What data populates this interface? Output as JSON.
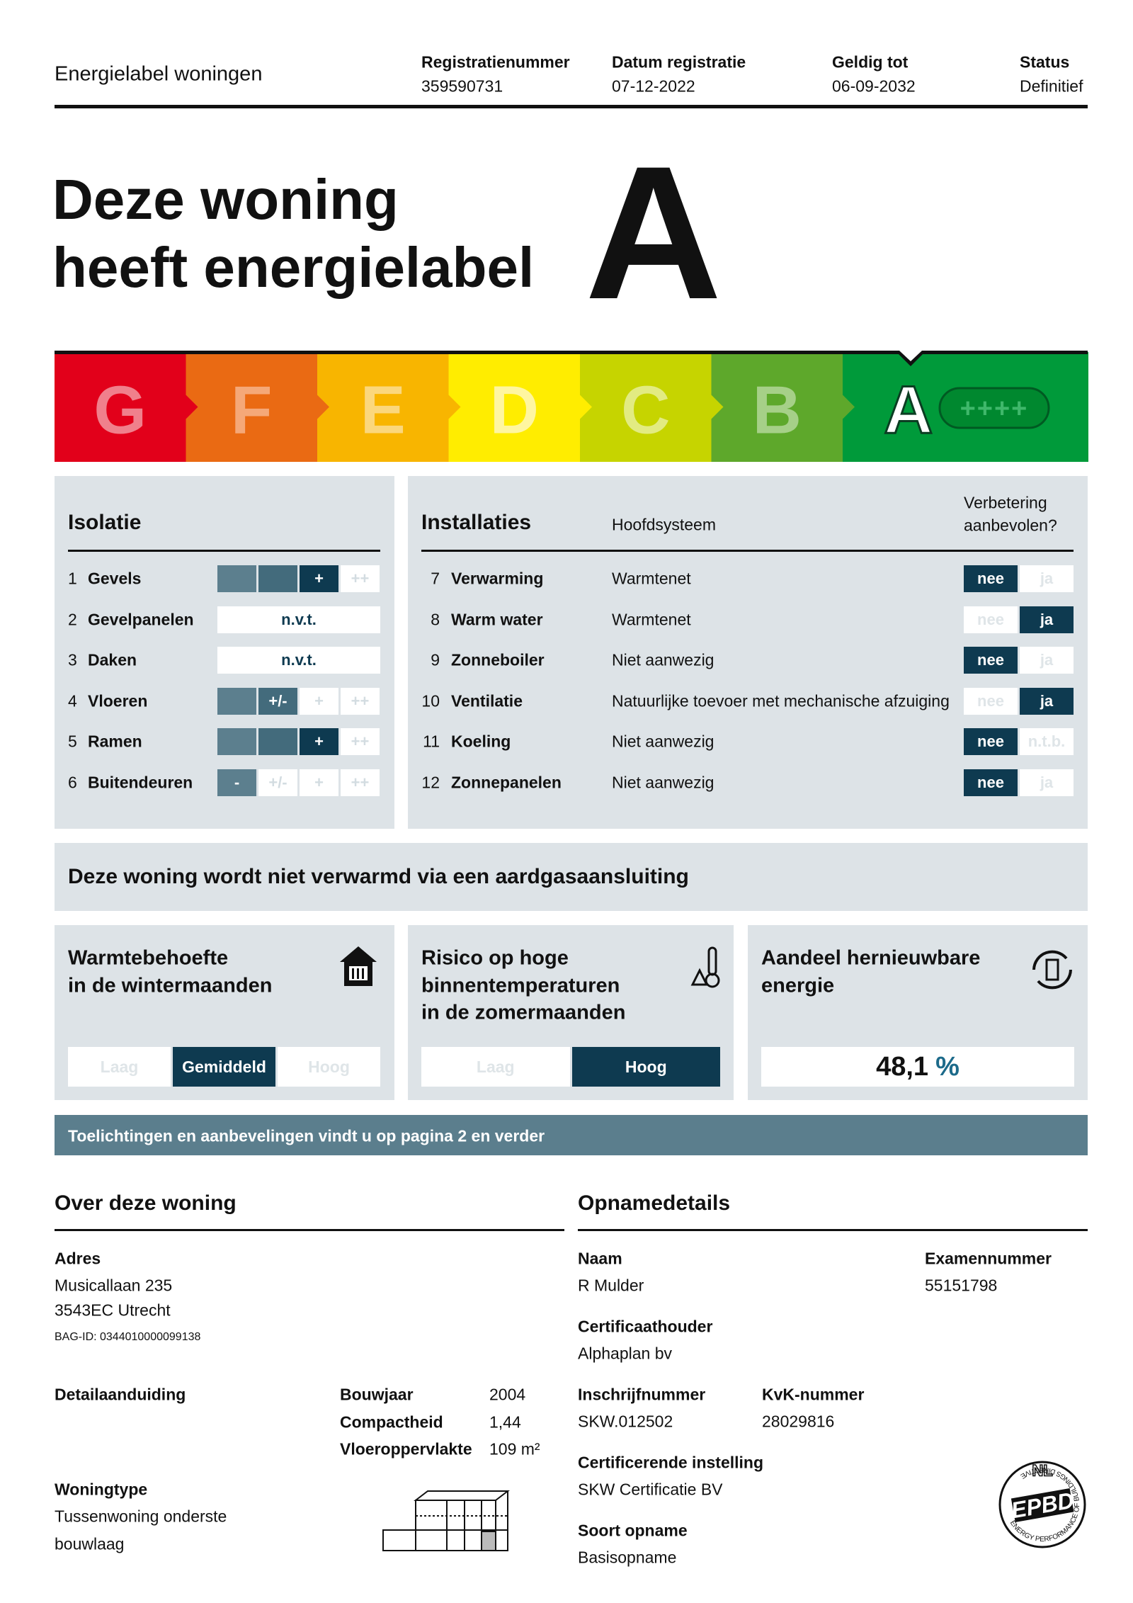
{
  "header": {
    "title": "Energielabel woningen",
    "fields": [
      {
        "label": "Registratienummer",
        "value": "359590731"
      },
      {
        "label": "Datum registratie",
        "value": "07-12-2022"
      },
      {
        "label": "Geldig tot",
        "value": "06-09-2032"
      },
      {
        "label": "Status",
        "value": "Definitief"
      }
    ]
  },
  "headline": {
    "lines": [
      "Deze woning",
      "heeft energielabel"
    ],
    "label": "A"
  },
  "scale": {
    "classes": [
      "G",
      "F",
      "E",
      "D",
      "C",
      "B",
      "A"
    ],
    "extra": "++++"
  },
  "isolatie": {
    "title": "Isolatie",
    "scale": [
      "-",
      "+/-",
      "+",
      "++"
    ],
    "rows": [
      {
        "num": "1",
        "name": "Gevels",
        "rating": "+"
      },
      {
        "num": "2",
        "name": "Gevelpanelen",
        "rating": "n.v.t."
      },
      {
        "num": "3",
        "name": "Daken",
        "rating": "n.v.t."
      },
      {
        "num": "4",
        "name": "Vloeren",
        "rating": "+/-"
      },
      {
        "num": "5",
        "name": "Ramen",
        "rating": "+"
      },
      {
        "num": "6",
        "name": "Buitendeuren",
        "rating": "-"
      }
    ]
  },
  "installaties": {
    "title": "Installaties",
    "system_header": "Hoofdsysteem",
    "advice_header": [
      "Verbetering",
      "aanbevolen?"
    ],
    "rows": [
      {
        "num": "7",
        "name": "Verwarming",
        "system": "Warmtenet",
        "options": [
          "nee",
          "ja"
        ],
        "answer": "nee"
      },
      {
        "num": "8",
        "name": "Warm water",
        "system": "Warmtenet",
        "options": [
          "nee",
          "ja"
        ],
        "answer": "ja"
      },
      {
        "num": "9",
        "name": "Zonneboiler",
        "system": "Niet aanwezig",
        "options": [
          "nee",
          "ja"
        ],
        "answer": "nee"
      },
      {
        "num": "10",
        "name": "Ventilatie",
        "system": "Natuurlijke toevoer met mechanische afzuiging",
        "options": [
          "nee",
          "ja"
        ],
        "answer": "ja"
      },
      {
        "num": "11",
        "name": "Koeling",
        "system": "Niet aanwezig",
        "options": [
          "nee",
          "n.t.b."
        ],
        "answer": "nee"
      },
      {
        "num": "12",
        "name": "Zonnepanelen",
        "system": "Niet aanwezig",
        "options": [
          "nee",
          "ja"
        ],
        "answer": "nee"
      }
    ]
  },
  "notice": "Deze woning wordt niet verwarmd via een aardgasaansluiting",
  "indicators": [
    {
      "title_lines": [
        "Warmtebehoefte",
        "in de wintermaanden"
      ],
      "options": [
        "Laag",
        "Gemiddeld",
        "Hoog"
      ],
      "answer": "Gemiddeld"
    },
    {
      "title_lines": [
        "Risico op hoge",
        "binnentemperaturen",
        "in de zomermaanden"
      ],
      "options": [
        "Laag",
        "Hoog"
      ],
      "answer": "Hoog"
    },
    {
      "title_lines": [
        "Aandeel hernieuwbare",
        "energie"
      ],
      "value": "48,1",
      "unit": "%"
    }
  ],
  "banner": "Toelichtingen en aanbevelingen vindt u op pagina 2 en verder",
  "woning": {
    "title": "Over deze woning",
    "address_label": "Adres",
    "address_lines": [
      "Musicallaan 235",
      "3543EC Utrecht"
    ],
    "bag_id": "BAG-ID: 0344010000099138",
    "detail_label": "Detailaanduiding",
    "facts": [
      {
        "label": "Bouwjaar",
        "value": "2004"
      },
      {
        "label": "Compactheid",
        "value": "1,44"
      },
      {
        "label": "Vloeroppervlakte",
        "value": "109 m²"
      }
    ],
    "type_label": "Woningtype",
    "type_lines": [
      "Tussenwoning onderste",
      "bouwlaag"
    ]
  },
  "opname": {
    "title": "Opnamedetails",
    "fields": [
      {
        "label": "Naam",
        "value": "R Mulder"
      },
      {
        "label": "Examennummer",
        "value": "55151798"
      },
      {
        "label": "Certificaathouder",
        "value": "Alphaplan bv"
      },
      {
        "label": "Inschrijfnummer",
        "value": "SKW.012502"
      },
      {
        "label": "KvK-nummer",
        "value": "28029816"
      },
      {
        "label": "Certificerende instelling",
        "value": "SKW Certificatie BV"
      },
      {
        "label": "Soort opname",
        "value": "Basisopname"
      }
    ]
  },
  "logo": {
    "country": "NL",
    "name": "EPBD",
    "ring": "ENERGY PERFORMANCE OF BUILDINGS DIRECTIVE"
  }
}
